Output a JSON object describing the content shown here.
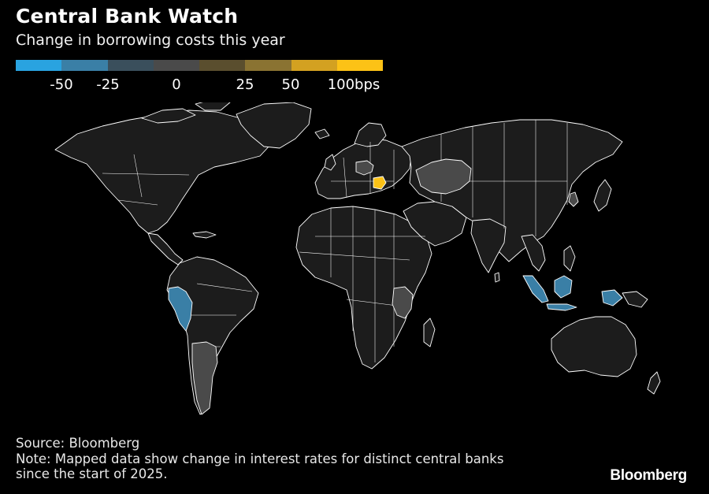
{
  "header": {
    "title": "Central Bank Watch",
    "subtitle": "Change in borrowing costs this year"
  },
  "legend": {
    "colors": [
      "#29a3e0",
      "#3a7fa6",
      "#3a4f5c",
      "#4a4a4a",
      "#5a4e2e",
      "#8a7332",
      "#d3a121",
      "#fcc216"
    ],
    "labels": [
      "-50",
      "-25",
      "0",
      "25",
      "50",
      "100bps"
    ]
  },
  "map": {
    "default_fill": "#1c1c1c",
    "highlighted": [
      {
        "name": "Peru",
        "color": "#3a7fa6"
      },
      {
        "name": "Argentina",
        "color": "#4a4a4a"
      },
      {
        "name": "Poland",
        "color": "#4a4a4a"
      },
      {
        "name": "Romania",
        "color": "#fcc216"
      },
      {
        "name": "Kazakhstan",
        "color": "#4a4a4a"
      },
      {
        "name": "Tanzania",
        "color": "#4a4a4a"
      },
      {
        "name": "Indonesia",
        "color": "#3a7fa6"
      },
      {
        "name": "South Korea",
        "color": "#4a4a4a"
      }
    ]
  },
  "footer": {
    "source": "Source: Bloomberg",
    "note_line1": "Note: Mapped data show change in interest rates for distinct central banks",
    "note_line2": "since the start of 2025."
  },
  "brand": "Bloomberg"
}
